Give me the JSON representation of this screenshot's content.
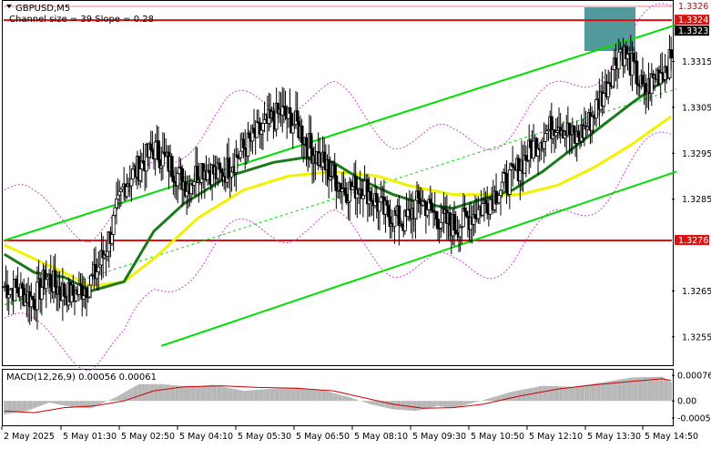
{
  "header": {
    "symbol": "GBPUSD,M5",
    "channel_info": "Channel size = 39 Slope = 0.28"
  },
  "macd_header": "MACD(12,26,9) 0.00056 0.00061",
  "colors": {
    "candle": "#000000",
    "ema_green": "#1a7a1a",
    "ema_yellow": "#f2f200",
    "channel": "#00dd00",
    "envelope": "#cc44cc",
    "level": "#e01010",
    "macd_hist": "#b5b5b5",
    "macd_signal": "#cc0000",
    "highlight": "#3f8f90"
  },
  "chart_data": {
    "type": "candlestick",
    "symbol": "GBPUSD",
    "timeframe": "M5",
    "y_ticks": [
      "1.3315",
      "1.3305",
      "1.3295",
      "1.3285",
      "1.3265",
      "1.3255"
    ],
    "ylim": [
      1.3249,
      1.3328
    ],
    "x_ticks": [
      "2 May 2025",
      "5 May 01:30",
      "5 May 02:50",
      "5 May 04:10",
      "5 May 05:30",
      "5 May 06:50",
      "5 May 08:10",
      "5 May 09:30",
      "5 May 10:50",
      "5 May 12:10",
      "5 May 13:30",
      "5 May 14:50"
    ],
    "price_tags": [
      "1.3326",
      "1.3324",
      "1.3323",
      "1.3276"
    ],
    "levels": [
      1.3324,
      1.3276
    ],
    "close_anchors": [
      [
        0,
        1.3266
      ],
      [
        10,
        1.3265
      ],
      [
        20,
        1.3263
      ],
      [
        28,
        1.3268
      ],
      [
        38,
        1.3265
      ],
      [
        45,
        1.3264
      ],
      [
        55,
        1.3266
      ],
      [
        60,
        1.3268
      ],
      [
        68,
        1.3274
      ],
      [
        80,
        1.3288
      ],
      [
        90,
        1.3292
      ],
      [
        100,
        1.3296
      ],
      [
        112,
        1.3292
      ],
      [
        122,
        1.3288
      ],
      [
        132,
        1.3292
      ],
      [
        145,
        1.329
      ],
      [
        160,
        1.3296
      ],
      [
        172,
        1.33
      ],
      [
        185,
        1.3304
      ],
      [
        196,
        1.3301
      ],
      [
        205,
        1.3296
      ],
      [
        215,
        1.3292
      ],
      [
        228,
        1.3287
      ],
      [
        240,
        1.3288
      ],
      [
        255,
        1.3282
      ],
      [
        268,
        1.328
      ],
      [
        278,
        1.3285
      ],
      [
        290,
        1.3281
      ],
      [
        302,
        1.3279
      ],
      [
        315,
        1.3282
      ],
      [
        325,
        1.3285
      ],
      [
        340,
        1.329
      ],
      [
        355,
        1.3297
      ],
      [
        370,
        1.3302
      ],
      [
        382,
        1.3298
      ],
      [
        390,
        1.3301
      ],
      [
        402,
        1.3309
      ],
      [
        412,
        1.3318
      ],
      [
        420,
        1.3314
      ],
      [
        428,
        1.3308
      ],
      [
        436,
        1.3312
      ],
      [
        446,
        1.3315
      ]
    ],
    "ema_fast": [
      [
        0,
        1.3273
      ],
      [
        20,
        1.3269
      ],
      [
        40,
        1.3268
      ],
      [
        58,
        1.3265
      ],
      [
        80,
        1.3267
      ],
      [
        100,
        1.3278
      ],
      [
        120,
        1.3284
      ],
      [
        150,
        1.329
      ],
      [
        180,
        1.3293
      ],
      [
        200,
        1.3294
      ],
      [
        220,
        1.3293
      ],
      [
        240,
        1.3289
      ],
      [
        260,
        1.3286
      ],
      [
        280,
        1.3284
      ],
      [
        300,
        1.3283
      ],
      [
        320,
        1.3285
      ],
      [
        340,
        1.3287
      ],
      [
        360,
        1.3291
      ],
      [
        380,
        1.3296
      ],
      [
        400,
        1.3301
      ],
      [
        420,
        1.3306
      ],
      [
        446,
        1.3312
      ]
    ],
    "ema_slow": [
      [
        0,
        1.3275
      ],
      [
        20,
        1.3272
      ],
      [
        40,
        1.3269
      ],
      [
        58,
        1.3266
      ],
      [
        80,
        1.3267
      ],
      [
        100,
        1.3272
      ],
      [
        130,
        1.3281
      ],
      [
        160,
        1.3287
      ],
      [
        190,
        1.329
      ],
      [
        220,
        1.3291
      ],
      [
        250,
        1.329
      ],
      [
        270,
        1.3288
      ],
      [
        300,
        1.3286
      ],
      [
        320,
        1.3286
      ],
      [
        345,
        1.3286
      ],
      [
        370,
        1.3288
      ],
      [
        395,
        1.3292
      ],
      [
        420,
        1.3297
      ],
      [
        446,
        1.3303
      ]
    ],
    "channel_lines": [
      {
        "name": "upper",
        "from": [
          0,
          1.3276
        ],
        "to": [
          446,
          1.3323
        ]
      },
      {
        "name": "middle",
        "from": [
          0,
          1.3262
        ],
        "to": [
          446,
          1.3309
        ]
      },
      {
        "name": "lower",
        "from": [
          105,
          1.3253
        ],
        "to": [
          446,
          1.3291
        ]
      }
    ],
    "macd": {
      "ylim": [
        -0.0007,
        0.0009
      ],
      "y_ticks": [
        "0.00076",
        "0.00",
        "-0.00051"
      ],
      "histogram_anchors": [
        [
          0,
          -0.0004
        ],
        [
          15,
          -0.0003
        ],
        [
          30,
          -5e-05
        ],
        [
          45,
          -0.00018
        ],
        [
          58,
          -0.00022
        ],
        [
          75,
          0.00012
        ],
        [
          90,
          0.0005
        ],
        [
          105,
          0.0005
        ],
        [
          125,
          0.00042
        ],
        [
          140,
          0.00048
        ],
        [
          160,
          0.0003
        ],
        [
          175,
          0.00035
        ],
        [
          195,
          0.0004
        ],
        [
          215,
          0.0003
        ],
        [
          230,
          0.00012
        ],
        [
          245,
          -0.0001
        ],
        [
          260,
          -0.00025
        ],
        [
          275,
          -0.0003
        ],
        [
          290,
          -0.00015
        ],
        [
          300,
          -0.00022
        ],
        [
          320,
          2e-05
        ],
        [
          340,
          0.00028
        ],
        [
          360,
          0.00045
        ],
        [
          380,
          0.00042
        ],
        [
          400,
          0.00055
        ],
        [
          420,
          0.0007
        ],
        [
          440,
          0.00072
        ],
        [
          446,
          0.00056
        ]
      ],
      "signal_anchors": [
        [
          0,
          -0.0003
        ],
        [
          20,
          -0.00035
        ],
        [
          40,
          -0.0002
        ],
        [
          60,
          -0.00015
        ],
        [
          80,
          0.0
        ],
        [
          100,
          0.0003
        ],
        [
          120,
          0.00042
        ],
        [
          145,
          0.00045
        ],
        [
          170,
          0.0004
        ],
        [
          195,
          0.00038
        ],
        [
          220,
          0.0003
        ],
        [
          240,
          0.0001
        ],
        [
          260,
          -0.0001
        ],
        [
          280,
          -0.00022
        ],
        [
          300,
          -0.0002
        ],
        [
          320,
          -0.0001
        ],
        [
          345,
          0.00015
        ],
        [
          370,
          0.00035
        ],
        [
          395,
          0.00048
        ],
        [
          420,
          0.00058
        ],
        [
          440,
          0.00066
        ],
        [
          446,
          0.00061
        ]
      ]
    }
  }
}
